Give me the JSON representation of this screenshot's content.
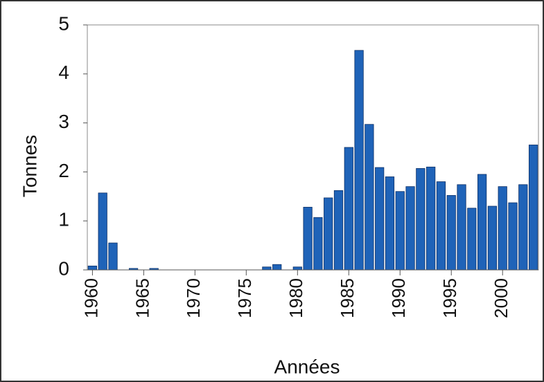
{
  "chart_data": {
    "type": "bar",
    "x_label": "Années",
    "y_label": "Tonnes",
    "x": [
      1960,
      1961,
      1962,
      1963,
      1964,
      1965,
      1966,
      1967,
      1968,
      1969,
      1970,
      1971,
      1972,
      1973,
      1974,
      1975,
      1976,
      1977,
      1978,
      1979,
      1980,
      1981,
      1982,
      1983,
      1984,
      1985,
      1986,
      1987,
      1988,
      1989,
      1990,
      1991,
      1992,
      1993,
      1994,
      1995,
      1996,
      1997,
      1998,
      1999,
      2000,
      2001,
      2002,
      2003
    ],
    "values": [
      0.08,
      1.57,
      0.55,
      0,
      0.03,
      0,
      0.03,
      0,
      0,
      0,
      0,
      0,
      0,
      0,
      0,
      0,
      0,
      0.06,
      0.11,
      0,
      0.06,
      1.28,
      1.07,
      1.47,
      1.62,
      2.5,
      4.48,
      2.97,
      2.09,
      1.9,
      1.6,
      1.7,
      2.07,
      2.1,
      1.8,
      1.52,
      1.74,
      1.26,
      1.95,
      1.3,
      1.7,
      1.37,
      1.74,
      2.55
    ],
    "color": "#1f63b8",
    "xlim": [
      1959.5,
      2003.5
    ],
    "xticks": [
      1960,
      1965,
      1970,
      1975,
      1980,
      1985,
      1990,
      1995,
      2000
    ],
    "ylim": [
      0,
      5
    ],
    "yticks": [
      0,
      1,
      2,
      3,
      4,
      5
    ],
    "grid": false
  }
}
